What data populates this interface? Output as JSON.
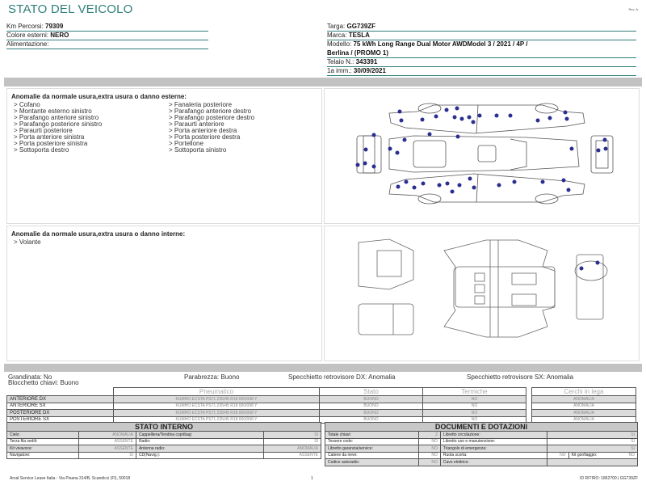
{
  "header": {
    "title": "STATO DEL VEICOLO",
    "rev": "Rev. A"
  },
  "vehicle": {
    "km_label": "Km Percorsi:",
    "km": "79309",
    "color_label": "Colore esterni:",
    "color": "NERO",
    "fuel_label": "Alimentazione:",
    "fuel": "",
    "plate_label": "Targa:",
    "plate": "GG739ZF",
    "brand_label": "Marca:",
    "brand": "TESLA",
    "model_label": "Modello:",
    "model_1": "75 kWh Long Range Dual Motor AWDModel 3 / 2021 / 4P /",
    "model_2": "Berlina / (PROMO 1)",
    "chassis_label": "Telaio N.:",
    "chassis": "343391",
    "reg_label": "1a imm.:",
    "reg": "30/09/2021"
  },
  "exterior": {
    "title": "Anomalie da normale usura,extra usura o danno esterne:",
    "col1": [
      "> Cofano",
      "> Montante esterno sinistro",
      "> Parafango anteriore sinistro",
      "> Parafango posteriore sinistro",
      "> Paraurti posteriore",
      "> Porta anteriore sinistra",
      "> Porta posteriore sinistra",
      "> Sottoporta destro"
    ],
    "col2": [
      "> Fanaleria posteriore",
      "> Parafango anteriore destro",
      "> Parafango posteriore destro",
      "> Paraurti anteriore",
      "> Porta anteriore destra",
      "> Porta posteriore destra",
      "> Portellone",
      "> Sottoporta sinistro"
    ]
  },
  "interior": {
    "title": "Anomalie da normale usura,extra usura o danno interne:",
    "items": [
      "> Volante"
    ]
  },
  "conditions": {
    "hail": "Grandinata: No",
    "keys": "Blocchetto chiavi: Buono",
    "windshield": "Parabrezza: Buono",
    "mirror_dx": "Specchietto retrovisore DX: Anomalia",
    "mirror_sx": "Specchietto retrovisore SX: Anomalia"
  },
  "tyres": {
    "headers": [
      "Pneumatico",
      "Stato",
      "Termiche"
    ],
    "rows": [
      {
        "pos": "ANTERIORE DX",
        "tyre": "KUMHO ECSTA PS71 235/45 R18 000/098 Y",
        "state": "BUONO",
        "winter": "NO"
      },
      {
        "pos": "ANTERIORE SX",
        "tyre": "KUMHO ECSTA PS71 235/45 R18 000/098 Y",
        "state": "BUONO",
        "winter": "NO"
      },
      {
        "pos": "POSTERIORE DX",
        "tyre": "KUMHO ECSTA PS71 235/45 R18 000/098 Y",
        "state": "BUONO",
        "winter": "NO"
      },
      {
        "pos": "POSTERIORE SX",
        "tyre": "KUMHO ECSTA PS71 235/45 R18 000/098 Y",
        "state": "BUONO",
        "winter": "NO"
      }
    ]
  },
  "rims": {
    "header": "Cerchi in lega",
    "values": [
      "ANOMALIA",
      "ANOMALIA",
      "ANOMALIA",
      "ANOMALIA"
    ]
  },
  "internal_state": {
    "title": "STATO INTERNO",
    "rows": [
      [
        "Cielo:",
        "ANOMALIA",
        "Cappelliera/Tendina copribag:",
        "SI"
      ],
      [
        "Terza fila sedili:",
        "ASSENTE",
        "Radio:",
        "SI"
      ],
      [
        "Kit vivavoce:",
        "ASSENTE",
        "Antenna radio:",
        "ANOMALIA"
      ],
      [
        "Navigatore:",
        "SI",
        "CD(Navig.):",
        "ASSENTE"
      ]
    ]
  },
  "documents": {
    "title": "DOCUMENTI E DOTAZIONI",
    "rows": [
      [
        "Totale chiavi:",
        "2",
        "Libretto circolazione:",
        "SI"
      ],
      [
        "Tessere code:",
        "NO",
        "Libretto uso e manutenzione:",
        "SI"
      ],
      [
        "Libretto garanzia/service:",
        "NO",
        "Triangolo di emergenza:",
        "SI"
      ],
      [
        "Catene da neve:",
        "NO",
        "Ruota scorta:",
        "NO"
      ],
      [
        "Codice autoradio:",
        "NO",
        "Cavo elettrico:",
        ""
      ]
    ],
    "kit_label": "Kit gonfiaggio:",
    "kit": "NO"
  },
  "footer": {
    "address": "Arval Service Lease Italia - Via Pisana 314/B, Scandicci (FI), 50018",
    "page": "1",
    "id": "ID RITIRO: 1862700 | GG739ZF"
  },
  "colors": {
    "accent": "#2f7f7a",
    "damage_dot": "#2a2f8f",
    "bar": "#c2c2c2"
  }
}
